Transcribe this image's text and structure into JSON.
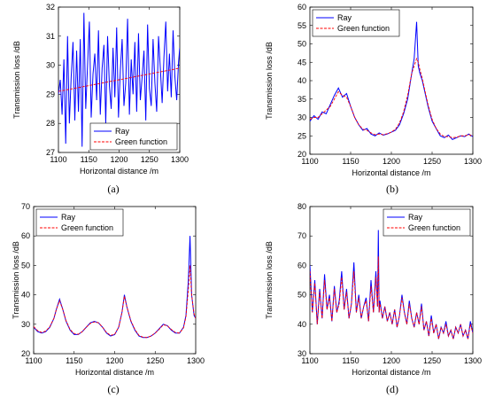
{
  "chart_data": [
    {
      "type": "line",
      "xlabel": "Horizontal distance /m",
      "ylabel": "Transmission loss /dB",
      "xlim": [
        1100,
        1300
      ],
      "ylim": [
        27,
        32
      ],
      "xticks": [
        1100,
        1150,
        1200,
        1250,
        1300
      ],
      "yticks": [
        27,
        28,
        29,
        30,
        31,
        32
      ],
      "panel_label": "(a)",
      "legend": "bottom-right",
      "series": [
        {
          "name": "Ray",
          "color": "#0000ff",
          "style": "solid",
          "x": [
            1100,
            1103,
            1106,
            1109,
            1112,
            1115,
            1118,
            1121,
            1124,
            1127,
            1130,
            1133,
            1136,
            1139,
            1142,
            1145,
            1148,
            1151,
            1154,
            1157,
            1160,
            1163,
            1166,
            1169,
            1172,
            1175,
            1178,
            1181,
            1184,
            1187,
            1190,
            1193,
            1196,
            1199,
            1202,
            1205,
            1208,
            1211,
            1214,
            1217,
            1220,
            1223,
            1226,
            1229,
            1232,
            1235,
            1238,
            1241,
            1244,
            1247,
            1250,
            1253,
            1256,
            1259,
            1262,
            1265,
            1268,
            1271,
            1274,
            1277,
            1280,
            1283,
            1286,
            1289,
            1292,
            1295,
            1298,
            1300
          ],
          "y": [
            29.0,
            29.5,
            28.3,
            30.2,
            27.3,
            31.0,
            28.0,
            29.6,
            30.8,
            28.1,
            30.5,
            28.4,
            30.9,
            27.2,
            31.8,
            28.5,
            30.0,
            31.5,
            28.2,
            29.7,
            30.4,
            28.8,
            31.2,
            28.3,
            29.9,
            30.7,
            28.0,
            31.0,
            29.3,
            28.5,
            30.6,
            28.9,
            31.3,
            28.2,
            29.8,
            30.9,
            28.6,
            29.4,
            31.6,
            28.3,
            30.2,
            29.0,
            30.8,
            28.4,
            31.1,
            28.8,
            29.6,
            30.5,
            28.1,
            31.4,
            29.2,
            28.6,
            30.9,
            29.4,
            28.4,
            31.0,
            29.9,
            28.7,
            30.3,
            31.5,
            29.1,
            30.4,
            28.9,
            31.2,
            29.6,
            28.8,
            30.1,
            30.6
          ]
        },
        {
          "name": "Green function",
          "color": "#ff0000",
          "style": "dashed",
          "x": [
            1100,
            1125,
            1150,
            1175,
            1200,
            1225,
            1250,
            1275,
            1300
          ],
          "y": [
            29.1,
            29.2,
            29.3,
            29.4,
            29.5,
            29.6,
            29.7,
            29.8,
            29.9
          ]
        }
      ]
    },
    {
      "type": "line",
      "xlabel": "Horizontal distance /m",
      "ylabel": "Transmission loss /dB",
      "xlim": [
        1100,
        1300
      ],
      "ylim": [
        20,
        60
      ],
      "xticks": [
        1100,
        1150,
        1200,
        1250,
        1300
      ],
      "yticks": [
        20,
        25,
        30,
        35,
        40,
        45,
        50,
        55,
        60
      ],
      "panel_label": "(b)",
      "legend": "top-left",
      "series": [
        {
          "name": "Ray",
          "color": "#0000ff",
          "style": "solid",
          "x": [
            1100,
            1105,
            1110,
            1115,
            1120,
            1125,
            1130,
            1135,
            1140,
            1145,
            1150,
            1155,
            1160,
            1165,
            1170,
            1175,
            1180,
            1185,
            1190,
            1195,
            1200,
            1205,
            1210,
            1215,
            1220,
            1225,
            1228,
            1231,
            1233,
            1235,
            1238,
            1241,
            1245,
            1250,
            1255,
            1260,
            1265,
            1270,
            1275,
            1280,
            1285,
            1290,
            1295,
            1300
          ],
          "y": [
            29.0,
            30.5,
            29.5,
            31.5,
            31.0,
            33.5,
            36.0,
            38.0,
            35.5,
            36.5,
            33.0,
            30.0,
            28.0,
            26.5,
            27.0,
            25.5,
            25.0,
            25.8,
            25.2,
            25.5,
            26.0,
            26.5,
            28.0,
            31.0,
            35.0,
            42.0,
            46.0,
            56.0,
            44.0,
            42.0,
            40.0,
            37.0,
            33.0,
            29.0,
            27.0,
            25.0,
            24.5,
            25.2,
            24.0,
            24.5,
            25.0,
            24.8,
            25.5,
            24.8
          ]
        },
        {
          "name": "Green function",
          "color": "#ff0000",
          "style": "dashed",
          "x": [
            1100,
            1105,
            1110,
            1115,
            1120,
            1125,
            1130,
            1135,
            1140,
            1145,
            1150,
            1155,
            1160,
            1165,
            1170,
            1175,
            1180,
            1185,
            1190,
            1195,
            1200,
            1205,
            1210,
            1215,
            1220,
            1225,
            1228,
            1231,
            1233,
            1235,
            1238,
            1241,
            1245,
            1250,
            1255,
            1260,
            1265,
            1270,
            1275,
            1280,
            1285,
            1290,
            1295,
            1300
          ],
          "y": [
            29.5,
            30.0,
            30.0,
            31.0,
            32.0,
            33.0,
            35.0,
            37.0,
            36.0,
            35.5,
            33.0,
            30.0,
            28.0,
            26.8,
            26.5,
            25.8,
            25.3,
            25.5,
            25.3,
            25.6,
            26.0,
            26.8,
            28.5,
            31.5,
            36.0,
            42.0,
            44.0,
            46.0,
            45.0,
            43.0,
            40.5,
            37.5,
            33.5,
            29.5,
            27.0,
            25.5,
            24.8,
            24.8,
            24.5,
            24.6,
            25.0,
            25.0,
            25.3,
            25.0
          ]
        }
      ]
    },
    {
      "type": "line",
      "xlabel": "Horizontal distance /m",
      "ylabel": "Transmission loss /dB",
      "xlim": [
        1100,
        1300
      ],
      "ylim": [
        20,
        70
      ],
      "xticks": [
        1100,
        1150,
        1200,
        1250,
        1300
      ],
      "yticks": [
        20,
        30,
        40,
        50,
        60,
        70
      ],
      "panel_label": "(c)",
      "legend": "top-left",
      "series": [
        {
          "name": "Ray",
          "color": "#0000ff",
          "style": "solid",
          "x": [
            1100,
            1105,
            1110,
            1115,
            1120,
            1125,
            1128,
            1132,
            1136,
            1140,
            1145,
            1150,
            1155,
            1160,
            1165,
            1170,
            1175,
            1180,
            1185,
            1190,
            1195,
            1200,
            1205,
            1209,
            1212,
            1215,
            1220,
            1225,
            1230,
            1235,
            1240,
            1245,
            1250,
            1255,
            1260,
            1265,
            1270,
            1275,
            1280,
            1285,
            1288,
            1291,
            1293,
            1295,
            1298,
            1300
          ],
          "y": [
            29.0,
            27.5,
            27.0,
            27.5,
            29.0,
            32.0,
            35.0,
            38.5,
            35.0,
            31.0,
            28.0,
            26.5,
            26.5,
            27.5,
            29.0,
            30.5,
            31.0,
            30.5,
            29.0,
            27.0,
            26.0,
            26.5,
            29.0,
            34.0,
            40.0,
            36.0,
            31.0,
            28.0,
            26.0,
            25.5,
            25.5,
            26.0,
            27.0,
            28.5,
            30.0,
            29.5,
            28.0,
            27.0,
            27.0,
            29.0,
            33.0,
            45.0,
            60.0,
            40.0,
            33.0,
            32.0
          ]
        },
        {
          "name": "Green function",
          "color": "#ff0000",
          "style": "dashed",
          "x": [
            1100,
            1105,
            1110,
            1115,
            1120,
            1125,
            1128,
            1132,
            1136,
            1140,
            1145,
            1150,
            1155,
            1160,
            1165,
            1170,
            1175,
            1180,
            1185,
            1190,
            1195,
            1200,
            1205,
            1209,
            1212,
            1215,
            1220,
            1225,
            1230,
            1235,
            1240,
            1245,
            1250,
            1255,
            1260,
            1265,
            1270,
            1275,
            1280,
            1285,
            1288,
            1291,
            1293,
            1295,
            1298,
            1300
          ],
          "y": [
            29.2,
            27.8,
            27.2,
            27.7,
            29.2,
            32.0,
            35.0,
            38.0,
            35.0,
            31.2,
            28.2,
            26.8,
            26.6,
            27.5,
            29.0,
            30.3,
            30.8,
            30.5,
            29.0,
            27.2,
            26.2,
            26.6,
            29.0,
            34.0,
            39.5,
            36.0,
            31.2,
            28.2,
            26.2,
            25.6,
            25.5,
            26.0,
            27.0,
            28.3,
            29.8,
            29.5,
            28.2,
            27.2,
            27.0,
            28.8,
            32.5,
            42.0,
            50.0,
            40.0,
            33.5,
            32.0
          ]
        }
      ]
    },
    {
      "type": "line",
      "xlabel": "Horizontal distance /m",
      "ylabel": "Transmission loss /dB",
      "xlim": [
        1100,
        1300
      ],
      "ylim": [
        30,
        80
      ],
      "xticks": [
        1100,
        1150,
        1200,
        1250,
        1300
      ],
      "yticks": [
        30,
        40,
        50,
        60,
        70,
        80
      ],
      "panel_label": "(d)",
      "legend": "top-right",
      "series": [
        {
          "name": "Ray",
          "color": "#0000ff",
          "style": "solid",
          "x": [
            1100,
            1103,
            1106,
            1109,
            1112,
            1115,
            1118,
            1121,
            1124,
            1127,
            1130,
            1133,
            1136,
            1139,
            1142,
            1145,
            1148,
            1151,
            1154,
            1157,
            1160,
            1163,
            1166,
            1169,
            1172,
            1175,
            1178,
            1181,
            1183,
            1184,
            1185,
            1186,
            1189,
            1192,
            1195,
            1198,
            1201,
            1204,
            1207,
            1210,
            1213,
            1216,
            1219,
            1222,
            1225,
            1228,
            1231,
            1234,
            1237,
            1240,
            1243,
            1246,
            1249,
            1252,
            1255,
            1258,
            1261,
            1264,
            1267,
            1270,
            1273,
            1276,
            1279,
            1282,
            1285,
            1288,
            1291,
            1294,
            1297,
            1300
          ],
          "y": [
            60,
            44,
            55,
            40,
            52,
            42,
            57,
            45,
            50,
            41,
            53,
            44,
            48,
            58,
            45,
            52,
            42,
            47,
            61,
            44,
            50,
            42,
            46,
            49,
            41,
            55,
            44,
            58,
            46,
            72,
            44,
            48,
            42,
            46,
            41,
            44,
            40,
            45,
            39,
            43,
            50,
            44,
            40,
            48,
            42,
            39,
            44,
            40,
            47,
            38,
            41,
            36,
            43,
            37,
            40,
            35,
            39,
            37,
            41,
            36,
            38,
            35,
            39,
            37,
            40,
            36,
            38,
            35,
            41,
            37
          ]
        },
        {
          "name": "Green function",
          "color": "#ff0000",
          "style": "dashed",
          "x": [
            1100,
            1103,
            1106,
            1109,
            1112,
            1115,
            1118,
            1121,
            1124,
            1127,
            1130,
            1133,
            1136,
            1139,
            1142,
            1145,
            1148,
            1151,
            1154,
            1157,
            1160,
            1163,
            1166,
            1169,
            1172,
            1175,
            1178,
            1181,
            1183,
            1184,
            1185,
            1186,
            1189,
            1192,
            1195,
            1198,
            1201,
            1204,
            1207,
            1210,
            1213,
            1216,
            1219,
            1222,
            1225,
            1228,
            1231,
            1234,
            1237,
            1240,
            1243,
            1246,
            1249,
            1252,
            1255,
            1258,
            1261,
            1264,
            1267,
            1270,
            1273,
            1276,
            1279,
            1282,
            1285,
            1288,
            1291,
            1294,
            1297,
            1300
          ],
          "y": [
            58,
            44,
            54,
            40,
            51,
            42,
            55,
            45,
            49,
            41,
            52,
            44,
            47,
            56,
            45,
            51,
            42,
            47,
            58,
            44,
            49,
            42,
            46,
            48,
            41,
            53,
            44,
            56,
            46,
            63,
            44,
            47,
            42,
            46,
            41,
            44,
            40,
            45,
            39,
            43,
            49,
            44,
            40,
            47,
            42,
            39,
            44,
            40,
            46,
            38,
            41,
            36,
            42,
            37,
            40,
            35,
            39,
            37,
            40,
            36,
            38,
            35,
            39,
            37,
            40,
            36,
            38,
            35,
            40,
            37
          ]
        }
      ]
    }
  ]
}
